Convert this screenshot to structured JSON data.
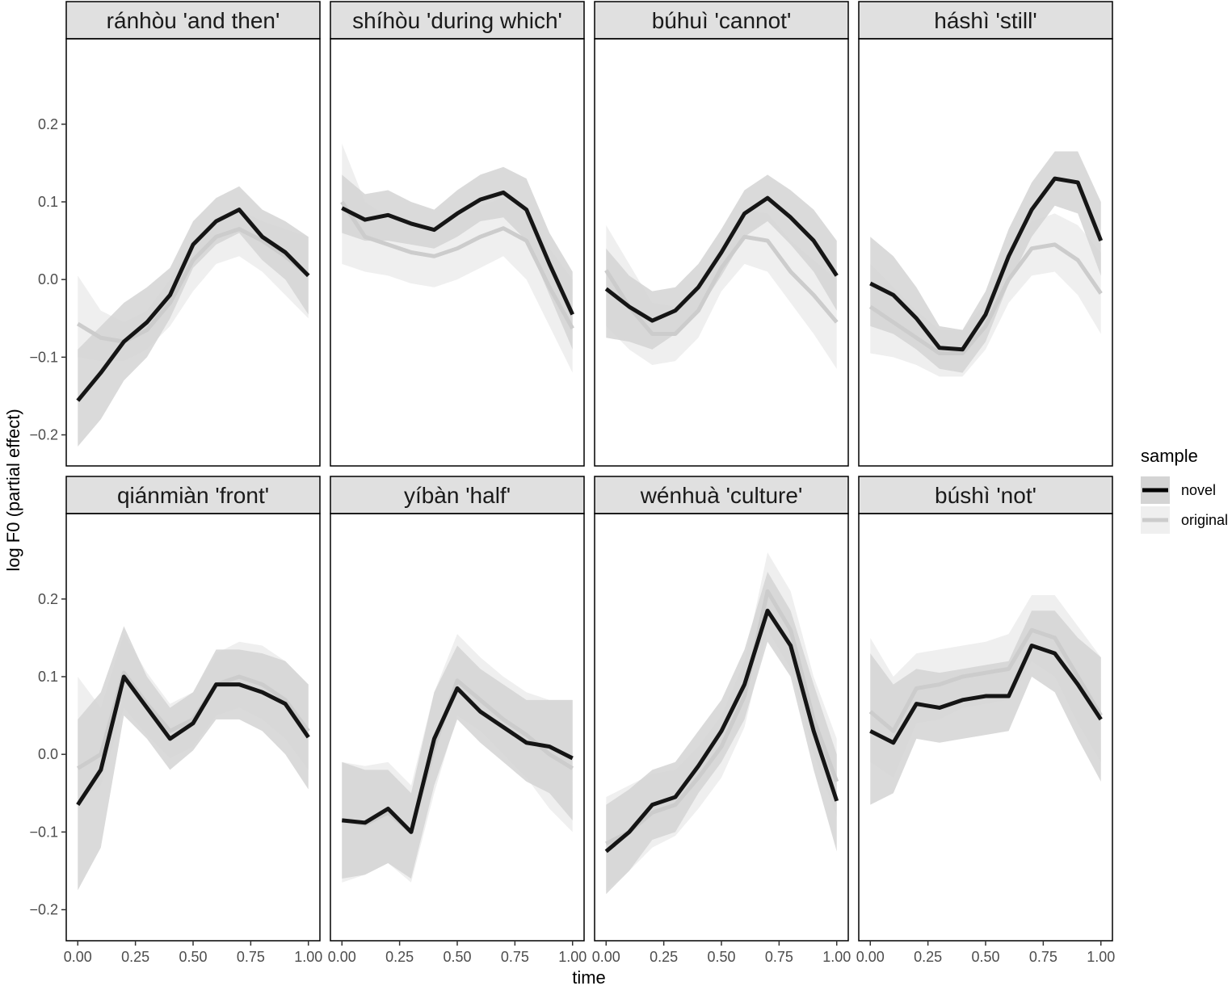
{
  "chart_data": {
    "type": "line",
    "facet_type": "small-multiples",
    "xlabel": "time",
    "ylabel": "log F0 (partial effect)",
    "xlim": [
      -0.05,
      1.05
    ],
    "ylim": [
      -0.24,
      0.31
    ],
    "x_ticks": [
      0,
      0.25,
      0.5,
      0.75,
      1.0
    ],
    "x_tick_labels": [
      "0.00",
      "0.25",
      "0.50",
      "0.75",
      "1.00"
    ],
    "y_ticks": [
      -0.2,
      -0.1,
      0.0,
      0.1,
      0.2
    ],
    "y_tick_labels": [
      "−0.2",
      "−0.1",
      "0.0",
      "0.1",
      "0.2"
    ],
    "grid": false,
    "legend": {
      "title": "sample",
      "position": "right",
      "entries": [
        {
          "name": "novel",
          "line_color": "#000000",
          "band_color": "#d4d4d4"
        },
        {
          "name": "original",
          "line_color": "#cccccc",
          "band_color": "#efefef"
        }
      ]
    },
    "x": [
      0,
      0.1,
      0.2,
      0.3,
      0.4,
      0.5,
      0.6,
      0.7,
      0.8,
      0.9,
      1.0
    ],
    "panels": [
      {
        "title": "ránhòu 'and then'",
        "series": [
          {
            "name": "novel",
            "y": [
              -0.156,
              -0.12,
              -0.08,
              -0.055,
              -0.02,
              0.045,
              0.075,
              0.09,
              0.055,
              0.035,
              0.005
            ],
            "lower": [
              -0.215,
              -0.18,
              -0.13,
              -0.1,
              -0.05,
              0.015,
              0.045,
              0.06,
              0.025,
              0.0,
              -0.045
            ],
            "upper": [
              -0.09,
              -0.06,
              -0.03,
              -0.01,
              0.015,
              0.075,
              0.105,
              0.12,
              0.09,
              0.075,
              0.055
            ]
          },
          {
            "name": "original",
            "y": [
              -0.057,
              -0.075,
              -0.08,
              -0.065,
              -0.03,
              0.025,
              0.055,
              0.065,
              0.05,
              0.03,
              0.005
            ],
            "lower": [
              -0.1,
              -0.105,
              -0.105,
              -0.09,
              -0.06,
              -0.015,
              0.02,
              0.03,
              0.01,
              -0.02,
              -0.05
            ],
            "upper": [
              0.005,
              -0.04,
              -0.055,
              -0.04,
              0.0,
              0.05,
              0.08,
              0.09,
              0.075,
              0.065,
              0.055
            ]
          }
        ]
      },
      {
        "title": "shíhòu 'during which'",
        "series": [
          {
            "name": "novel",
            "y": [
              0.092,
              0.077,
              0.083,
              0.072,
              0.064,
              0.085,
              0.103,
              0.112,
              0.09,
              0.02,
              -0.045
            ],
            "lower": [
              0.06,
              0.05,
              0.05,
              0.045,
              0.04,
              0.055,
              0.075,
              0.08,
              0.05,
              -0.02,
              -0.09
            ],
            "upper": [
              0.135,
              0.11,
              0.115,
              0.1,
              0.09,
              0.115,
              0.135,
              0.145,
              0.13,
              0.06,
              0.01
            ]
          },
          {
            "name": "original",
            "y": [
              0.1,
              0.055,
              0.045,
              0.035,
              0.03,
              0.04,
              0.055,
              0.066,
              0.05,
              -0.01,
              -0.063
            ],
            "lower": [
              0.02,
              0.01,
              0.005,
              -0.005,
              -0.01,
              0.0,
              0.015,
              0.03,
              0.0,
              -0.06,
              -0.12
            ],
            "upper": [
              0.175,
              0.1,
              0.08,
              0.07,
              0.065,
              0.08,
              0.095,
              0.105,
              0.09,
              0.04,
              0.0
            ]
          }
        ]
      },
      {
        "title": "búhuì 'cannot'",
        "series": [
          {
            "name": "novel",
            "y": [
              -0.012,
              -0.035,
              -0.053,
              -0.04,
              -0.01,
              0.035,
              0.085,
              0.105,
              0.08,
              0.05,
              0.005
            ],
            "lower": [
              -0.075,
              -0.08,
              -0.09,
              -0.07,
              -0.04,
              0.005,
              0.055,
              0.075,
              0.045,
              0.01,
              -0.04
            ],
            "upper": [
              0.04,
              0.005,
              -0.015,
              -0.01,
              0.02,
              0.065,
              0.115,
              0.135,
              0.115,
              0.09,
              0.05
            ]
          },
          {
            "name": "original",
            "y": [
              0.012,
              -0.035,
              -0.07,
              -0.07,
              -0.04,
              0.015,
              0.055,
              0.05,
              0.01,
              -0.02,
              -0.055
            ],
            "lower": [
              -0.06,
              -0.09,
              -0.11,
              -0.105,
              -0.075,
              -0.015,
              0.02,
              0.01,
              -0.03,
              -0.07,
              -0.115
            ],
            "upper": [
              0.07,
              0.02,
              -0.03,
              -0.035,
              -0.005,
              0.045,
              0.09,
              0.085,
              0.05,
              0.025,
              0.0
            ]
          }
        ]
      },
      {
        "title": "háshì 'still'",
        "series": [
          {
            "name": "novel",
            "y": [
              -0.005,
              -0.02,
              -0.05,
              -0.088,
              -0.09,
              -0.045,
              0.03,
              0.09,
              0.13,
              0.125,
              0.05
            ],
            "lower": [
              -0.06,
              -0.07,
              -0.09,
              -0.115,
              -0.12,
              -0.08,
              -0.005,
              0.055,
              0.095,
              0.085,
              0.005
            ],
            "upper": [
              0.055,
              0.03,
              -0.01,
              -0.06,
              -0.065,
              -0.015,
              0.065,
              0.125,
              0.165,
              0.165,
              0.1
            ]
          },
          {
            "name": "original",
            "y": [
              -0.035,
              -0.055,
              -0.075,
              -0.095,
              -0.095,
              -0.06,
              0.0,
              0.04,
              0.045,
              0.025,
              -0.018
            ],
            "lower": [
              -0.095,
              -0.1,
              -0.11,
              -0.125,
              -0.125,
              -0.09,
              -0.03,
              0.005,
              0.01,
              -0.02,
              -0.07
            ],
            "upper": [
              0.02,
              -0.01,
              -0.04,
              -0.065,
              -0.065,
              -0.03,
              0.035,
              0.075,
              0.085,
              0.07,
              0.035
            ]
          }
        ]
      },
      {
        "title": "qiánmiàn 'front'",
        "series": [
          {
            "name": "novel",
            "y": [
              -0.065,
              -0.02,
              0.1,
              0.06,
              0.02,
              0.04,
              0.09,
              0.09,
              0.08,
              0.065,
              0.022
            ],
            "lower": [
              -0.175,
              -0.12,
              0.05,
              0.02,
              -0.02,
              0.005,
              0.045,
              0.045,
              0.03,
              0.0,
              -0.045
            ],
            "upper": [
              0.045,
              0.08,
              0.165,
              0.1,
              0.06,
              0.08,
              0.135,
              0.135,
              0.13,
              0.12,
              0.09
            ]
          },
          {
            "name": "original",
            "y": [
              -0.018,
              0.0,
              0.105,
              0.065,
              0.03,
              0.045,
              0.09,
              0.1,
              0.09,
              0.07,
              0.03
            ],
            "lower": [
              -0.06,
              -0.04,
              0.06,
              0.025,
              -0.005,
              0.01,
              0.05,
              0.06,
              0.045,
              0.02,
              -0.02
            ],
            "upper": [
              0.1,
              0.06,
              0.155,
              0.105,
              0.065,
              0.08,
              0.13,
              0.145,
              0.14,
              0.12,
              0.09
            ]
          }
        ]
      },
      {
        "title": "yíbàn 'half'",
        "series": [
          {
            "name": "novel",
            "y": [
              -0.085,
              -0.088,
              -0.07,
              -0.1,
              0.02,
              0.085,
              0.055,
              0.035,
              0.015,
              0.01,
              -0.005
            ],
            "lower": [
              -0.16,
              -0.155,
              -0.14,
              -0.16,
              -0.04,
              0.045,
              0.015,
              -0.01,
              -0.035,
              -0.05,
              -0.085
            ],
            "upper": [
              -0.01,
              -0.02,
              -0.02,
              -0.05,
              0.08,
              0.14,
              0.11,
              0.09,
              0.07,
              0.07,
              0.07
            ]
          },
          {
            "name": "original",
            "y": [
              -0.085,
              -0.09,
              -0.075,
              -0.1,
              0.01,
              0.095,
              0.07,
              0.045,
              0.025,
              0.0,
              -0.018
            ],
            "lower": [
              -0.165,
              -0.155,
              -0.14,
              -0.165,
              -0.05,
              0.05,
              0.03,
              0.0,
              -0.03,
              -0.07,
              -0.1
            ],
            "upper": [
              -0.01,
              -0.015,
              -0.01,
              -0.04,
              0.08,
              0.155,
              0.125,
              0.1,
              0.08,
              0.07,
              0.07
            ]
          }
        ]
      },
      {
        "title": "wénhuà 'culture'",
        "series": [
          {
            "name": "novel",
            "y": [
              -0.125,
              -0.1,
              -0.065,
              -0.055,
              -0.015,
              0.03,
              0.09,
              0.185,
              0.14,
              0.03,
              -0.06
            ],
            "lower": [
              -0.18,
              -0.15,
              -0.11,
              -0.1,
              -0.05,
              -0.01,
              0.045,
              0.145,
              0.1,
              -0.02,
              -0.125
            ],
            "upper": [
              -0.065,
              -0.045,
              -0.02,
              -0.01,
              0.03,
              0.07,
              0.135,
              0.235,
              0.185,
              0.09,
              0.0
            ]
          },
          {
            "name": "original",
            "y": [
              -0.115,
              -0.1,
              -0.075,
              -0.065,
              -0.03,
              0.01,
              0.075,
              0.21,
              0.16,
              0.045,
              -0.035
            ],
            "lower": [
              -0.175,
              -0.15,
              -0.12,
              -0.105,
              -0.07,
              -0.03,
              0.035,
              0.16,
              0.11,
              0.0,
              -0.08
            ],
            "upper": [
              -0.055,
              -0.04,
              -0.025,
              -0.02,
              0.01,
              0.05,
              0.12,
              0.26,
              0.21,
              0.1,
              0.02
            ]
          }
        ]
      },
      {
        "title": "búshì 'not'",
        "series": [
          {
            "name": "novel",
            "y": [
              0.03,
              0.015,
              0.065,
              0.06,
              0.07,
              0.075,
              0.075,
              0.14,
              0.13,
              0.09,
              0.045
            ],
            "lower": [
              -0.065,
              -0.05,
              0.02,
              0.015,
              0.02,
              0.025,
              0.03,
              0.1,
              0.08,
              0.02,
              -0.035
            ],
            "upper": [
              0.13,
              0.09,
              0.11,
              0.105,
              0.11,
              0.115,
              0.12,
              0.185,
              0.185,
              0.15,
              0.125
            ]
          },
          {
            "name": "original",
            "y": [
              0.055,
              0.03,
              0.085,
              0.09,
              0.1,
              0.105,
              0.11,
              0.16,
              0.15,
              0.1,
              0.05
            ],
            "lower": [
              -0.01,
              -0.03,
              0.04,
              0.045,
              0.06,
              0.065,
              0.07,
              0.12,
              0.1,
              0.04,
              -0.01
            ],
            "upper": [
              0.15,
              0.1,
              0.13,
              0.135,
              0.14,
              0.145,
              0.155,
              0.205,
              0.205,
              0.165,
              0.125
            ]
          }
        ]
      }
    ]
  }
}
